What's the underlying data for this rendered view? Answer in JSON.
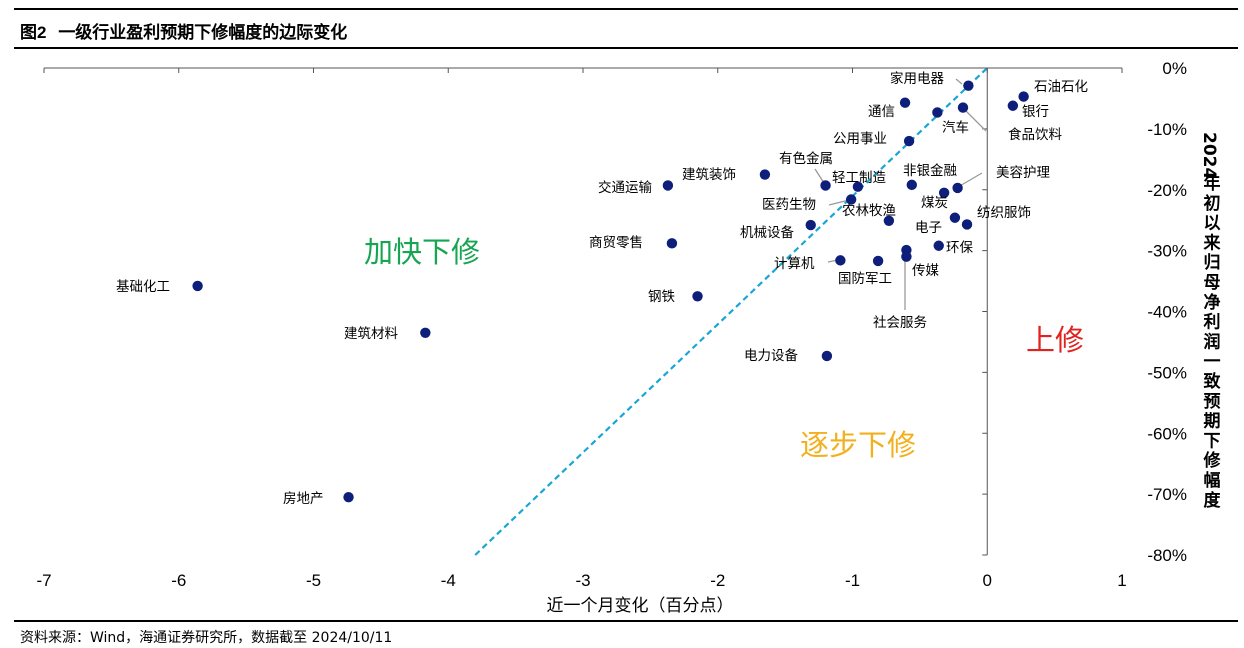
{
  "title": {
    "prefix": "图",
    "number": "2",
    "text": "一级行业盈利预期下修幅度的边际变化"
  },
  "source": "资料来源：Wind，海通证券研究所，数据截至 2024/10/11",
  "colors": {
    "point": "#0d1f7a",
    "diagonal": "#1aa6d4",
    "fast_down": "#18a552",
    "step_down": "#f2b01e",
    "up": "#e0231f"
  },
  "zones": {
    "fast_down": "加快下修",
    "step_down": "逐步下修",
    "up": "上修"
  },
  "chart_data": {
    "type": "scatter",
    "xlabel": "近一个月变化（百分点）",
    "ylabel": "2024年初以来归母净利润一致预期下修幅度",
    "xlim": [
      -7,
      1
    ],
    "ylim": [
      -80,
      0
    ],
    "x_ticks": [
      "-7",
      "-6",
      "-5",
      "-4",
      "-3",
      "-2",
      "-1",
      "0",
      "1"
    ],
    "y_ticks": [
      "0%",
      "-10%",
      "-20%",
      "-30%",
      "-40%",
      "-50%",
      "-60%",
      "-70%",
      "-80%"
    ],
    "diagonal": {
      "x": [
        -3.8,
        0
      ],
      "y": [
        -80,
        0
      ],
      "style": "dashed"
    },
    "points": [
      {
        "name": "石油石化",
        "x": 0.27,
        "y": -4.7
      },
      {
        "name": "银行",
        "x": 0.19,
        "y": -6.2
      },
      {
        "name": "家用电器",
        "x": -0.14,
        "y": -2.9
      },
      {
        "name": "通信",
        "x": -0.61,
        "y": -5.7
      },
      {
        "name": "汽车",
        "x": -0.37,
        "y": -7.3
      },
      {
        "name": "食品饮料",
        "x": -0.18,
        "y": -6.5
      },
      {
        "name": "公用事业",
        "x": -0.58,
        "y": -12.0
      },
      {
        "name": "美容护理",
        "x": -0.22,
        "y": -19.7
      },
      {
        "name": "非银金融",
        "x": -0.56,
        "y": -19.2
      },
      {
        "name": "煤炭",
        "x": -0.32,
        "y": -20.5
      },
      {
        "name": "纺织服饰",
        "x": -0.24,
        "y": -24.6
      },
      {
        "name": "电子",
        "x": -0.15,
        "y": -25.7
      },
      {
        "name": "有色金属",
        "x": -1.2,
        "y": -19.3
      },
      {
        "name": "轻工制造",
        "x": -0.96,
        "y": -19.5
      },
      {
        "name": "建筑装饰",
        "x": -1.65,
        "y": -17.5
      },
      {
        "name": "交通运输",
        "x": -2.37,
        "y": -19.3
      },
      {
        "name": "医药生物",
        "x": -1.01,
        "y": -21.6
      },
      {
        "name": "农林牧渔",
        "x": -0.73,
        "y": -25.1
      },
      {
        "name": "机械设备",
        "x": -1.31,
        "y": -25.8
      },
      {
        "name": "商贸零售",
        "x": -2.34,
        "y": -28.8
      },
      {
        "name": "环保",
        "x": -0.36,
        "y": -29.2
      },
      {
        "name": "传媒",
        "x": -0.6,
        "y": -29.9
      },
      {
        "name": "计算机",
        "x": -1.09,
        "y": -31.6
      },
      {
        "name": "国防军工",
        "x": -0.81,
        "y": -31.7
      },
      {
        "name": "社会服务",
        "x": -0.6,
        "y": -31.0
      },
      {
        "name": "钢铁",
        "x": -2.15,
        "y": -37.5
      },
      {
        "name": "电力设备",
        "x": -1.19,
        "y": -47.3
      },
      {
        "name": "基础化工",
        "x": -5.86,
        "y": -35.8
      },
      {
        "name": "建筑材料",
        "x": -4.17,
        "y": -43.5
      },
      {
        "name": "房地产",
        "x": -4.74,
        "y": -70.5
      }
    ]
  }
}
